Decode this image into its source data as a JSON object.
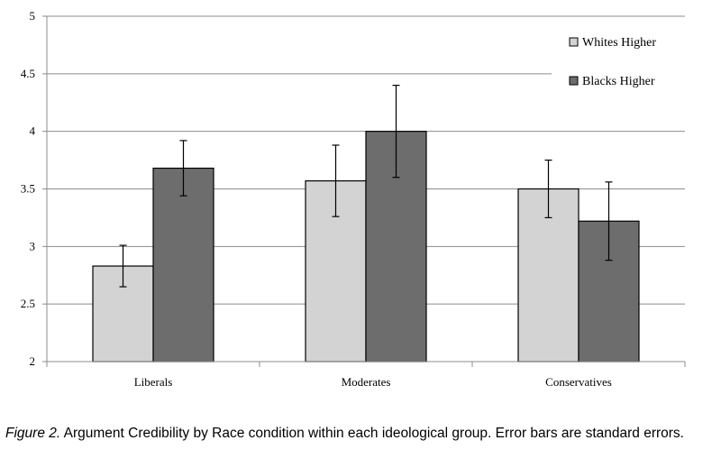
{
  "chart_data": {
    "type": "bar",
    "title": "",
    "xlabel": "",
    "ylabel": "",
    "ylim": [
      2,
      5
    ],
    "yticks": [
      "2",
      "2.5",
      "3",
      "3.5",
      "4",
      "4.5",
      "5"
    ],
    "ytick_values": [
      2,
      2.5,
      3,
      3.5,
      4,
      4.5,
      5
    ],
    "categories": [
      "Liberals",
      "Moderates",
      "Conservatives"
    ],
    "series": [
      {
        "name": "Whites Higher",
        "color": "#d3d3d3",
        "values": [
          2.83,
          3.57,
          3.5
        ],
        "error_low": [
          2.65,
          3.26,
          3.25
        ],
        "error_high": [
          3.01,
          3.88,
          3.75
        ]
      },
      {
        "name": "Blacks Higher",
        "color": "#6d6d6d",
        "values": [
          3.68,
          4.0,
          3.22
        ],
        "error_low": [
          3.44,
          3.6,
          2.88
        ],
        "error_high": [
          3.92,
          4.4,
          3.56
        ]
      }
    ],
    "grid": "horizontal",
    "legend_position": "top-right"
  },
  "caption": {
    "figure_label": "Figure 2.",
    "text": " Argument Credibility by Race condition within each ideological group. Error bars are standard errors."
  }
}
